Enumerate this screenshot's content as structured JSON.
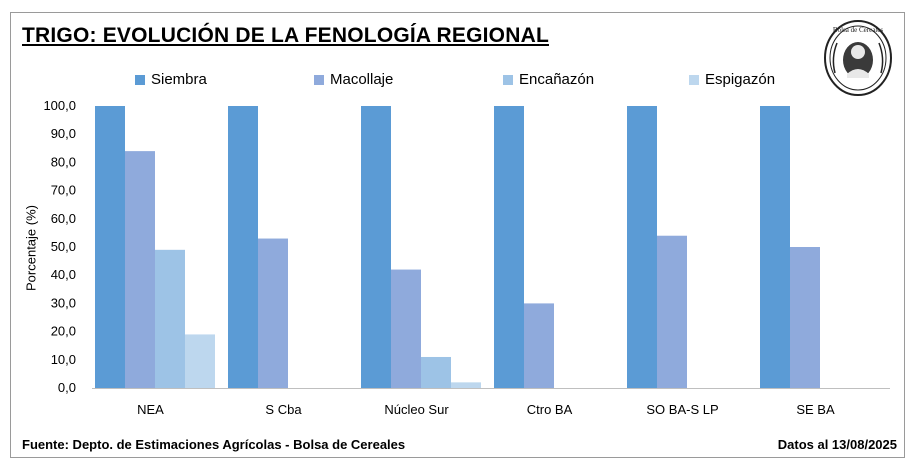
{
  "chart_data": {
    "type": "bar",
    "title": "TRIGO: EVOLUCIÓN DE LA FENOLOGÍA REGIONAL",
    "ylabel": "Porcentaje (%)",
    "xlabel": "",
    "ylim": [
      0,
      100
    ],
    "y_ticks": [
      "0,0",
      "10,0",
      "20,0",
      "30,0",
      "40,0",
      "50,0",
      "60,0",
      "70,0",
      "80,0",
      "90,0",
      "100,0"
    ],
    "categories": [
      "NEA",
      "S Cba",
      "Núcleo Sur",
      "Ctro BA",
      "SO BA-S LP",
      "SE BA"
    ],
    "series": [
      {
        "name": "Siembra",
        "color": "#5b9bd5",
        "values": [
          100,
          100,
          100,
          100,
          100,
          100
        ]
      },
      {
        "name": "Macollaje",
        "color": "#8faadc",
        "values": [
          84,
          53,
          42,
          30,
          54,
          50
        ]
      },
      {
        "name": "Encañazón",
        "color": "#9dc3e6",
        "values": [
          49,
          0,
          11,
          0,
          0,
          0
        ]
      },
      {
        "name": "Espigazón",
        "color": "#bdd7ee",
        "values": [
          19,
          0,
          2,
          0,
          0,
          0
        ]
      }
    ],
    "legend_position": "top",
    "grid": false
  },
  "footer": {
    "source": "Fuente: Depto. de Estimaciones Agrícolas - Bolsa de Cereales",
    "date": "Datos al 13/08/2025"
  },
  "logo": {
    "text": "Bolsa de Cereales",
    "icon": "bolsa-de-cereales-seal"
  }
}
